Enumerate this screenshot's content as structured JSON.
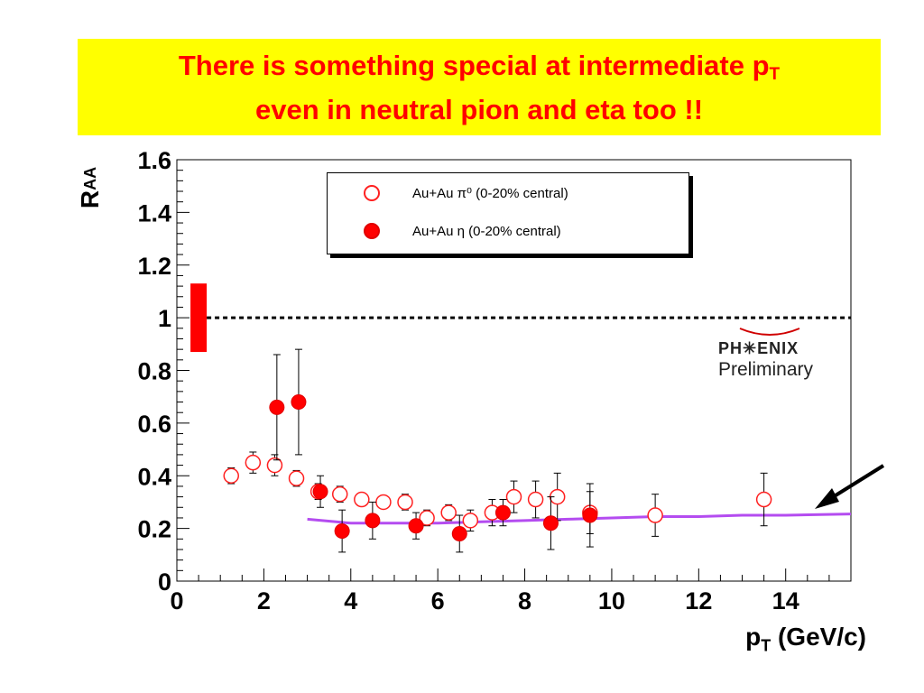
{
  "header": {
    "title_line1_main": "There is something special at intermediate p",
    "title_line1_sub": "T",
    "title_line2": "even in neutral pion and eta too !!"
  },
  "legend": {
    "item1": "Au+Au π⁰ (0-20% central)",
    "item2": "Au+Au η (0-20% central)"
  },
  "watermark": {
    "logo": "PH✳ENIX",
    "sub": "Preliminary"
  },
  "colors": {
    "accent": "#ff0000",
    "title_bg": "#ffff00",
    "curve": "#b44cf0"
  },
  "chart_data": {
    "type": "scatter",
    "xlabel_main": "p",
    "xlabel_sub": "T",
    "xlabel_unit": " (GeV/c)",
    "ylabel_main": "R",
    "ylabel_sub": "AA",
    "xlim": [
      0,
      15.5
    ],
    "ylim": [
      0,
      1.6
    ],
    "xticks": [
      0,
      2,
      4,
      6,
      8,
      10,
      12,
      14
    ],
    "yticks": [
      0,
      0.2,
      0.4,
      0.6,
      0.8,
      1,
      1.2,
      1.4,
      1.6
    ],
    "ytick_labels": [
      "0",
      "0.2",
      "0.4",
      "0.6",
      "0.8",
      "1",
      "1.2",
      "1.4",
      "1.6"
    ],
    "reference_line": 1.0,
    "normalization_box": {
      "x": 0.5,
      "ylow": 0.87,
      "yhigh": 1.13
    },
    "series": [
      {
        "name": "Au+Au π⁰ (0-20% central)",
        "marker": "open-circle",
        "points": [
          {
            "x": 1.25,
            "y": 0.4,
            "err": 0.03
          },
          {
            "x": 1.75,
            "y": 0.45,
            "err": 0.04
          },
          {
            "x": 2.25,
            "y": 0.44,
            "err": 0.04
          },
          {
            "x": 2.75,
            "y": 0.39,
            "err": 0.03
          },
          {
            "x": 3.25,
            "y": 0.34,
            "err": 0.03
          },
          {
            "x": 3.75,
            "y": 0.33,
            "err": 0.03
          },
          {
            "x": 4.25,
            "y": 0.31,
            "err": 0.02
          },
          {
            "x": 4.75,
            "y": 0.3,
            "err": 0.02
          },
          {
            "x": 5.25,
            "y": 0.3,
            "err": 0.03
          },
          {
            "x": 5.75,
            "y": 0.24,
            "err": 0.03
          },
          {
            "x": 6.25,
            "y": 0.26,
            "err": 0.03
          },
          {
            "x": 6.75,
            "y": 0.23,
            "err": 0.04
          },
          {
            "x": 7.25,
            "y": 0.26,
            "err": 0.05
          },
          {
            "x": 7.75,
            "y": 0.32,
            "err": 0.06
          },
          {
            "x": 8.25,
            "y": 0.31,
            "err": 0.07
          },
          {
            "x": 8.75,
            "y": 0.32,
            "err": 0.09
          },
          {
            "x": 9.5,
            "y": 0.26,
            "err": 0.08
          },
          {
            "x": 11.0,
            "y": 0.25,
            "err": 0.08
          },
          {
            "x": 13.5,
            "y": 0.31,
            "err": 0.1
          }
        ]
      },
      {
        "name": "Au+Au η (0-20% central)",
        "marker": "filled-circle",
        "points": [
          {
            "x": 2.3,
            "y": 0.66,
            "err": 0.2
          },
          {
            "x": 2.8,
            "y": 0.68,
            "err": 0.2
          },
          {
            "x": 3.3,
            "y": 0.34,
            "err": 0.06
          },
          {
            "x": 3.8,
            "y": 0.19,
            "err": 0.08
          },
          {
            "x": 4.5,
            "y": 0.23,
            "err": 0.07
          },
          {
            "x": 5.5,
            "y": 0.21,
            "err": 0.05
          },
          {
            "x": 6.5,
            "y": 0.18,
            "err": 0.07
          },
          {
            "x": 7.5,
            "y": 0.26,
            "err": 0.05
          },
          {
            "x": 8.6,
            "y": 0.22,
            "err": 0.1
          },
          {
            "x": 9.5,
            "y": 0.25,
            "err": 0.12
          }
        ]
      }
    ],
    "curve": [
      {
        "x": 3.0,
        "y": 0.235
      },
      {
        "x": 4.0,
        "y": 0.22
      },
      {
        "x": 5.0,
        "y": 0.22
      },
      {
        "x": 6.0,
        "y": 0.22
      },
      {
        "x": 7.0,
        "y": 0.225
      },
      {
        "x": 8.0,
        "y": 0.23
      },
      {
        "x": 9.0,
        "y": 0.235
      },
      {
        "x": 10.0,
        "y": 0.24
      },
      {
        "x": 11.0,
        "y": 0.245
      },
      {
        "x": 12.0,
        "y": 0.245
      },
      {
        "x": 13.0,
        "y": 0.25
      },
      {
        "x": 14.0,
        "y": 0.25
      },
      {
        "x": 15.5,
        "y": 0.255
      }
    ]
  }
}
